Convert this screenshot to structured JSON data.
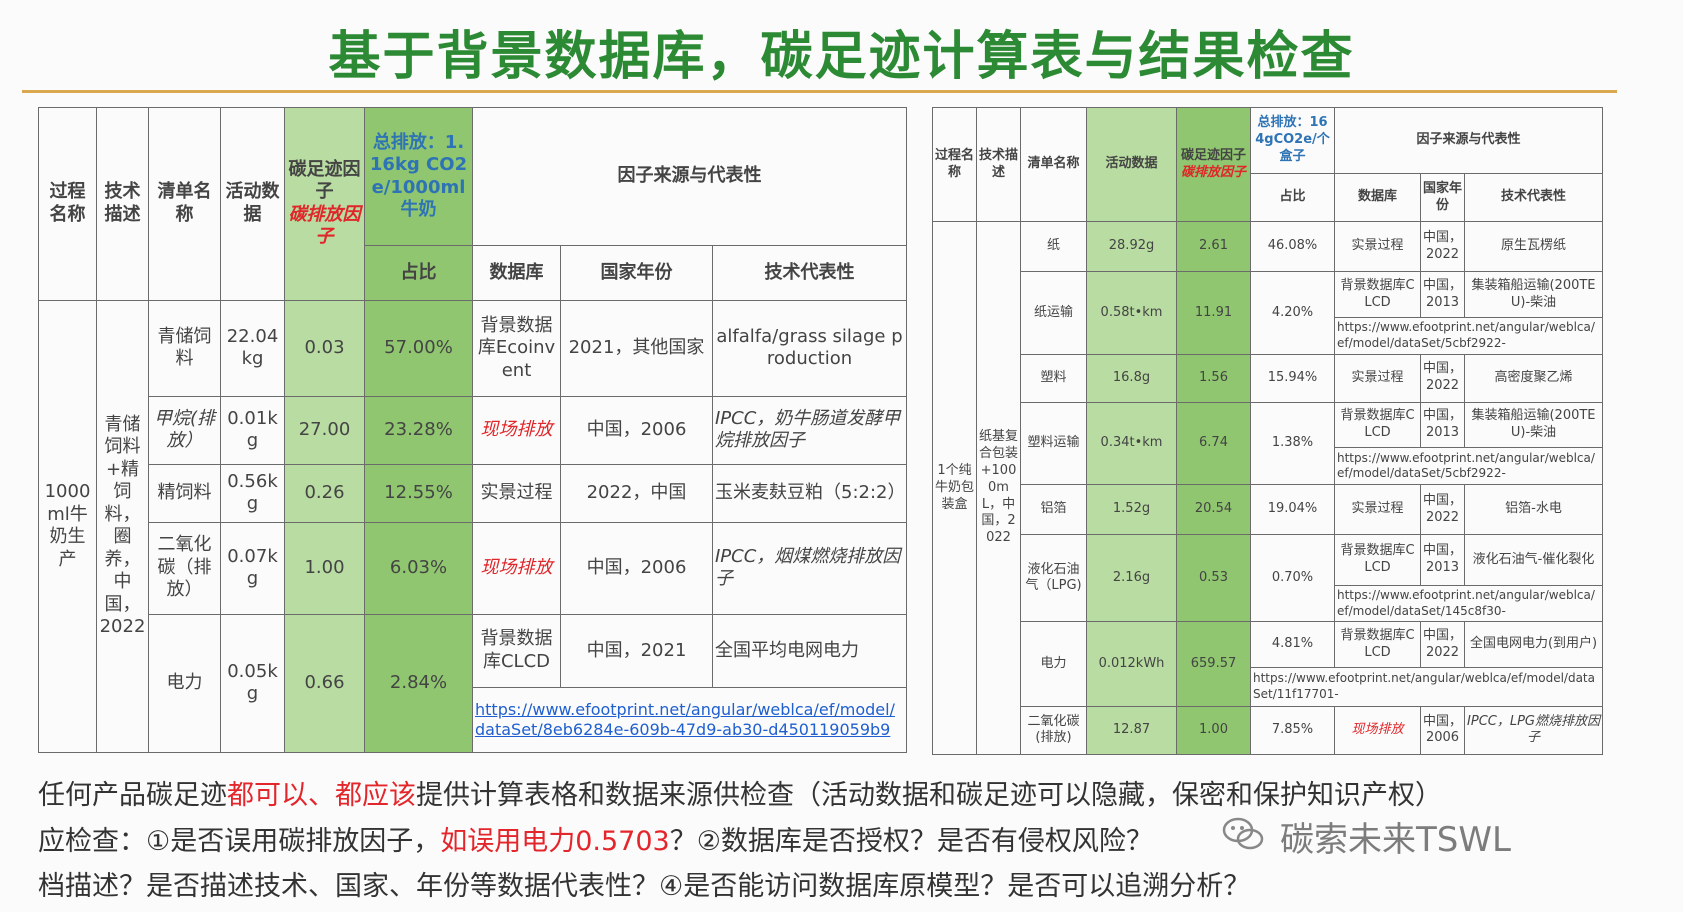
{
  "title": "基于背景数据库，碳足迹计算表与结果检查",
  "left_table": {
    "h_process": "过程名称",
    "h_tech": "技术描述",
    "h_list": "清单名称",
    "h_activity": "活动数据",
    "h_factor_main": "碳足迹因子",
    "h_factor_note": "碳排放因子",
    "h_total": "总排放：1.16kg CO2 e/1000ml牛奶",
    "h_source": "因子来源与代表性",
    "h_share": "占比",
    "h_db": "数据库",
    "h_country_year": "国家年份",
    "h_tech_rep": "技术代表性",
    "process": "1000 ml牛奶生产",
    "tech": "青储饲料+精饲料，圈养，中国，2022",
    "rows": [
      {
        "name": "青储饲料",
        "activity": "22.04kg",
        "factor": "0.03",
        "share": "57.00%",
        "db": "背景数据库Ecoinvent",
        "cy": "2021，其他国家",
        "rep": "alfalfa/grass silage production"
      },
      {
        "name": "甲烷(排放）",
        "activity": "0.01kg",
        "factor": "27.00",
        "share": "23.28%",
        "db": "现场排放",
        "cy": "中国，2006",
        "rep": "IPCC，奶牛肠道发酵甲烷排放因子"
      },
      {
        "name": "精饲料",
        "activity": "0.56kg",
        "factor": "0.26",
        "share": "12.55%",
        "db": "实景过程",
        "cy": "2022，中国",
        "rep": "玉米麦麸豆粕（5:2:2）"
      },
      {
        "name": "二氧化碳（排放）",
        "activity": "0.07kg",
        "factor": "1.00",
        "share": "6.03%",
        "db": "现场排放",
        "cy": "中国，2006",
        "rep": "IPCC，烟煤燃烧排放因子"
      },
      {
        "name": "电力",
        "activity": "0.05kg",
        "factor": "0.66",
        "share": "2.84%",
        "db": "背景数据库CLCD",
        "cy": "中国，2021",
        "rep": "全国平均电网电力",
        "link": "https://www.efootprint.net/angular/weblca/ef/model/dataSet/8eb6284e-609b-47d9-ab30-d450119059b9"
      }
    ]
  },
  "right_table": {
    "h_process": "过程名称",
    "h_tech": "技术描述",
    "h_list": "清单名称",
    "h_activity": "活动数据",
    "h_factor_main": "碳足迹因子",
    "h_factor_note": "碳排放因子",
    "h_total": "总排放：164gCO2e/个盒子",
    "h_source": "因子来源与代表性",
    "h_share": "占比",
    "h_db": "数据库",
    "h_cy": "国家年份",
    "h_rep": "技术代表性",
    "process": "1个纯牛奶包装盒",
    "tech": "纸基复合包装+1000mL，中国，2022",
    "rows": [
      {
        "name": "纸",
        "activity": "28.92g",
        "factor": "2.61",
        "share": "46.08%",
        "db": "实景过程",
        "cy": "中国，2022",
        "rep": "原生瓦楞纸"
      },
      {
        "name": "纸运输",
        "activity": "0.58t•km",
        "factor": "11.91",
        "share": "4.20%",
        "db": "背景数据库CLCD",
        "cy": "中国，2013",
        "rep": "集装箱船运输(200TEU)-柴油",
        "link": "https://www.efootprint.net/angular/weblca/ef/model/dataSet/5cbf2922-"
      },
      {
        "name": "塑料",
        "activity": "16.8g",
        "factor": "1.56",
        "share": "15.94%",
        "db": "实景过程",
        "cy": "中国，2022",
        "rep": "高密度聚乙烯"
      },
      {
        "name": "塑料运输",
        "activity": "0.34t•km",
        "factor": "6.74",
        "share": "1.38%",
        "db": "背景数据库CLCD",
        "cy": "中国，2013",
        "rep": "集装箱船运输(200TEU)-柴油",
        "link": "https://www.efootprint.net/angular/weblca/ef/model/dataSet/5cbf2922-"
      },
      {
        "name": "铝箔",
        "activity": "1.52g",
        "factor": "20.54",
        "share": "19.04%",
        "db": "实景过程",
        "cy": "中国，2022",
        "rep": "铝箔-水电"
      },
      {
        "name": "液化石油气（LPG)",
        "activity": "2.16g",
        "factor": "0.53",
        "share": "0.70%",
        "db": "背景数据库CLCD",
        "cy": "中国，2013",
        "rep": "液化石油气-催化裂化",
        "link": "https://www.efootprint.net/angular/weblca/ef/model/dataSet/145c8f30-"
      },
      {
        "name": "电力",
        "activity": "0.012kWh",
        "factor": "659.57",
        "share": "4.81%",
        "db": "背景数据库CLCD",
        "cy": "中国，2022",
        "rep": "全国电网电力(到用户)",
        "link": "https://www.efootprint.net/angular/weblca/ef/model/dataSet/11f17701-"
      },
      {
        "name": "二氧化碳(排放)",
        "activity": "12.87",
        "factor": "1.00",
        "share": "7.85%",
        "db": "现场排放",
        "cy": "中国，2006",
        "rep": "IPCC，LPG燃烧排放因子"
      }
    ]
  },
  "notes": {
    "line1_a": "任何产品碳足迹",
    "line1_b": "都可以、都应该",
    "line1_c": "提供计算表格和数据来源供检查（活动数据和碳足迹可以隐藏，保密和保护知识产权）",
    "line2_a": "应检查：①是否误用碳排放因子，",
    "line2_b": "如误用电力0.5703",
    "line2_c": "？②数据库是否授权？是否有侵权风险？",
    "line3": "档描述？是否描述技术、国家、年份等数据代表性？④是否能访问数据库原模型？是否可以追溯分析？"
  },
  "watermark": "碳索未来TSWL"
}
